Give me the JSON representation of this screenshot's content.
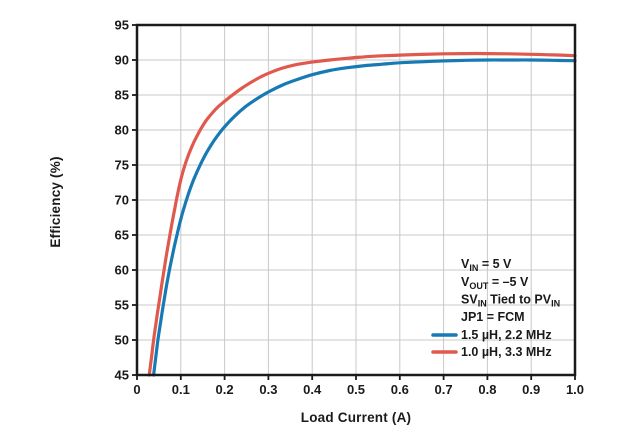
{
  "figure": {
    "background": "#ffffff"
  },
  "chart_data": {
    "type": "line",
    "title": "",
    "xlabel": "Load Current (A)",
    "ylabel": "Efficiency (%)",
    "xlim": [
      0,
      1
    ],
    "ylim": [
      45,
      95
    ],
    "grid": true,
    "legend_position": "inside-lower-right",
    "xticks": [
      0,
      0.1,
      0.2,
      0.3,
      0.4,
      0.5,
      0.6,
      0.7,
      0.8,
      0.9,
      1.0
    ],
    "xtick_labels": [
      "0",
      "0.1",
      "0.2",
      "0.3",
      "0.4",
      "0.5",
      "0.6",
      "0.7",
      "0.8",
      "0.9",
      "1.0"
    ],
    "yticks": [
      45,
      50,
      55,
      60,
      65,
      70,
      75,
      80,
      85,
      90,
      95
    ],
    "ytick_labels": [
      "45",
      "50",
      "55",
      "60",
      "65",
      "70",
      "75",
      "80",
      "85",
      "90",
      "95"
    ],
    "colors": {
      "grid": "#c8c8c8",
      "axis": "#1a1a1a",
      "text": "#1a1a1a"
    },
    "annotations": [
      {
        "segments": [
          {
            "t": "V"
          },
          {
            "t": "IN",
            "sub": true
          },
          {
            "t": " = 5 V"
          }
        ]
      },
      {
        "segments": [
          {
            "t": "V"
          },
          {
            "t": "OUT",
            "sub": true
          },
          {
            "t": " = –5 V"
          }
        ]
      },
      {
        "segments": [
          {
            "t": "SV"
          },
          {
            "t": "IN",
            "sub": true
          },
          {
            "t": " Tied to PV"
          },
          {
            "t": "IN",
            "sub": true
          }
        ]
      },
      {
        "segments": [
          {
            "t": "JP1 = FCM"
          }
        ]
      }
    ],
    "series": [
      {
        "name": "1.5 µH, 2.2 MHz",
        "color": "#177ab5",
        "points": [
          [
            0.038,
            45.0
          ],
          [
            0.043,
            47.6
          ],
          [
            0.048,
            50.1
          ],
          [
            0.054,
            52.6
          ],
          [
            0.06,
            55.0
          ],
          [
            0.067,
            57.6
          ],
          [
            0.075,
            60.3
          ],
          [
            0.085,
            63.3
          ],
          [
            0.095,
            66.0
          ],
          [
            0.105,
            68.4
          ],
          [
            0.118,
            71.0
          ],
          [
            0.13,
            73.0
          ],
          [
            0.145,
            75.1
          ],
          [
            0.16,
            76.9
          ],
          [
            0.175,
            78.4
          ],
          [
            0.19,
            79.7
          ],
          [
            0.205,
            80.8
          ],
          [
            0.225,
            82.1
          ],
          [
            0.245,
            83.2
          ],
          [
            0.265,
            84.1
          ],
          [
            0.285,
            84.9
          ],
          [
            0.305,
            85.6
          ],
          [
            0.335,
            86.5
          ],
          [
            0.365,
            87.2
          ],
          [
            0.4,
            87.9
          ],
          [
            0.44,
            88.5
          ],
          [
            0.48,
            88.9
          ],
          [
            0.52,
            89.2
          ],
          [
            0.56,
            89.4
          ],
          [
            0.6,
            89.6
          ],
          [
            0.65,
            89.75
          ],
          [
            0.7,
            89.87
          ],
          [
            0.75,
            89.95
          ],
          [
            0.8,
            90.0
          ],
          [
            0.85,
            90.0
          ],
          [
            0.9,
            90.0
          ],
          [
            0.95,
            89.95
          ],
          [
            1.0,
            89.9
          ]
        ]
      },
      {
        "name": "1.0 µH, 3.3 MHz",
        "color": "#e0594d",
        "points": [
          [
            0.028,
            45.0
          ],
          [
            0.033,
            47.5
          ],
          [
            0.038,
            50.0
          ],
          [
            0.044,
            52.7
          ],
          [
            0.05,
            55.2
          ],
          [
            0.056,
            57.7
          ],
          [
            0.063,
            60.5
          ],
          [
            0.07,
            63.2
          ],
          [
            0.08,
            66.7
          ],
          [
            0.09,
            70.0
          ],
          [
            0.1,
            72.9
          ],
          [
            0.112,
            75.5
          ],
          [
            0.125,
            77.6
          ],
          [
            0.14,
            79.5
          ],
          [
            0.155,
            81.1
          ],
          [
            0.17,
            82.3
          ],
          [
            0.185,
            83.3
          ],
          [
            0.2,
            84.1
          ],
          [
            0.22,
            85.1
          ],
          [
            0.24,
            86.0
          ],
          [
            0.26,
            86.8
          ],
          [
            0.28,
            87.5
          ],
          [
            0.3,
            88.1
          ],
          [
            0.33,
            88.8
          ],
          [
            0.36,
            89.3
          ],
          [
            0.4,
            89.7
          ],
          [
            0.44,
            90.0
          ],
          [
            0.48,
            90.25
          ],
          [
            0.52,
            90.45
          ],
          [
            0.56,
            90.6
          ],
          [
            0.6,
            90.7
          ],
          [
            0.65,
            90.8
          ],
          [
            0.7,
            90.88
          ],
          [
            0.75,
            90.92
          ],
          [
            0.8,
            90.92
          ],
          [
            0.85,
            90.88
          ],
          [
            0.9,
            90.82
          ],
          [
            0.95,
            90.73
          ],
          [
            1.0,
            90.62
          ]
        ]
      }
    ]
  }
}
